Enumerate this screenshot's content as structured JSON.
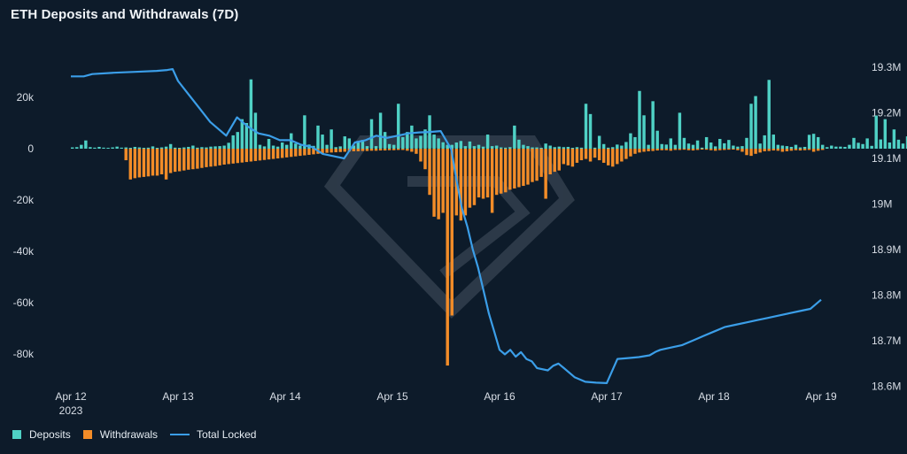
{
  "title": "ETH Deposits and Withdrawals (7D)",
  "colors": {
    "background": "#0d1b2a",
    "deposits": "#4fd1c5",
    "withdrawals": "#f28c28",
    "total_locked": "#3b9ee8",
    "axis_text": "#d8dee6"
  },
  "chart_data": {
    "type": "bar",
    "title": "ETH Deposits and Withdrawals (7D)",
    "xlabel": "",
    "ylabel": "",
    "x_ticks": [
      "Apr 12",
      "Apr 13",
      "Apr 14",
      "Apr 15",
      "Apr 16",
      "Apr 17",
      "Apr 18",
      "Apr 19"
    ],
    "x_tick_sublabel": "2023",
    "x_range_days": [
      -0.12,
      7.0
    ],
    "ylim_left": [
      -90000,
      30000
    ],
    "y_ticks_left": [
      "20k",
      "0",
      "-20k",
      "-40k",
      "-60k",
      "-80k"
    ],
    "y_tick_values_left": [
      20000,
      0,
      -20000,
      -40000,
      -60000,
      -80000
    ],
    "ylim_right": [
      18.55,
      19.35
    ],
    "y_ticks_right": [
      "19.3M",
      "19.2M",
      "19.1M",
      "19M",
      "18.9M",
      "18.8M",
      "18.7M",
      "18.6M"
    ],
    "y_tick_values_right": [
      19.3,
      19.2,
      19.1,
      19.0,
      18.9,
      18.8,
      18.7,
      18.6
    ],
    "bars_per_day": 24,
    "series": [
      {
        "name": "Deposits",
        "type": "bar",
        "axis": "left",
        "start_day": 0,
        "values": [
          500,
          600,
          1500,
          3200,
          600,
          400,
          700,
          400,
          300,
          500,
          800,
          400,
          500,
          300,
          700,
          500,
          300,
          400,
          900,
          300,
          500,
          800,
          1800,
          400,
          300,
          500,
          700,
          1200,
          400,
          600,
          500,
          800,
          900,
          1000,
          1200,
          2300,
          5200,
          6500,
          11500,
          10000,
          27000,
          14000,
          1500,
          900,
          3800,
          1200,
          800,
          2400,
          1500,
          6000,
          2000,
          1200,
          13000,
          1600,
          1100,
          9000,
          5500,
          1500,
          7500,
          600,
          900,
          4800,
          4000,
          1200,
          3000,
          3400,
          1000,
          11500,
          1000,
          14000,
          6500,
          1800,
          1500,
          17500,
          4500,
          6500,
          9000,
          4000,
          5000,
          7500,
          13000,
          5500,
          4000,
          2500,
          1500,
          1500,
          2400,
          3000,
          1000,
          2800,
          1000,
          1500,
          800,
          5500,
          1000,
          1200,
          500,
          400,
          600,
          9000,
          3500,
          1500,
          1000,
          500,
          500,
          300,
          2000,
          1200,
          600,
          800,
          600,
          700,
          300,
          600,
          400,
          17500,
          13500,
          400,
          5000,
          1800,
          400,
          600,
          1600,
          1200,
          2600,
          6000,
          4500,
          22500,
          13000,
          1500,
          18500,
          7000,
          1800,
          1600,
          4000,
          1500,
          14000,
          4200,
          2000,
          1500,
          3200,
          400,
          4500,
          2400,
          900,
          3800,
          2100,
          3400,
          1200,
          800,
          1000,
          4200,
          17500,
          20500,
          2000,
          5200,
          26800,
          5500,
          1500,
          1200,
          1000,
          700,
          1500,
          500,
          700,
          5400,
          5800,
          4500,
          1500,
          600,
          1200,
          800,
          800,
          700,
          1500,
          4200,
          2300,
          1800,
          4000,
          1100,
          12900,
          3600,
          11500,
          2400,
          7500,
          3500,
          2000,
          4800,
          2000,
          1200,
          2400,
          400,
          1300,
          700,
          1300,
          700,
          7800,
          1500,
          900,
          1100,
          14300,
          7000
        ]
      },
      {
        "name": "Withdrawals",
        "type": "bar",
        "axis": "left",
        "start_day": 0.5,
        "values": [
          -4500,
          -12000,
          -11500,
          -11200,
          -11000,
          -10800,
          -10500,
          -10500,
          -10000,
          -12000,
          -9500,
          -9000,
          -8800,
          -8500,
          -8200,
          -8000,
          -7800,
          -7500,
          -7200,
          -7000,
          -6800,
          -6500,
          -6200,
          -6000,
          -5800,
          -5600,
          -5400,
          -5200,
          -5000,
          -4800,
          -4600,
          -4400,
          -4200,
          -4000,
          -3800,
          -3600,
          -3400,
          -3200,
          -3000,
          -2800,
          -2600,
          -2400,
          -2200,
          -2000,
          -1800,
          -1600,
          -1500,
          -1400,
          -1300,
          -1200,
          -1100,
          -1000,
          -1000,
          -900,
          -900,
          -800,
          -800,
          -700,
          -700,
          -600,
          -600,
          -500,
          -500,
          -800,
          -1200,
          -2000,
          -5000,
          -8000,
          -18000,
          -26500,
          -27500,
          -25000,
          -84500,
          -65000,
          -26000,
          -28000,
          -26000,
          -23000,
          -22000,
          -19000,
          -19500,
          -19000,
          -25000,
          -18000,
          -17500,
          -17000,
          -16000,
          -15500,
          -15000,
          -14500,
          -14000,
          -13000,
          -12500,
          -11000,
          -19500,
          -10000,
          -9000,
          -8500,
          -6000,
          -6500,
          -7000,
          -5500,
          -4500,
          -4000,
          -5000,
          -3500,
          -4500,
          -5500,
          -6500,
          -7000,
          -6000,
          -5000,
          -4000,
          -3000,
          -2000,
          -1500,
          -1200,
          -1000,
          -900,
          -700,
          -600,
          -600,
          -800,
          -500,
          -500,
          -400,
          -600,
          -700,
          -500,
          -300,
          -400,
          -600,
          -800,
          -600,
          -500,
          -400,
          -300,
          -600,
          -1200,
          -2500,
          -2800,
          -2000,
          -1500,
          -1000,
          -900,
          -700,
          -800,
          -1200,
          -1000,
          -800,
          -600,
          -700,
          -600,
          -500,
          -1200,
          -800,
          -500
        ]
      },
      {
        "name": "Total Locked",
        "type": "line",
        "axis": "right",
        "x_days": [
          0,
          0.12,
          0.2,
          0.4,
          0.6,
          0.8,
          0.9,
          0.95,
          1.0,
          1.1,
          1.2,
          1.3,
          1.45,
          1.5,
          1.55,
          1.65,
          1.75,
          1.85,
          1.95,
          2.05,
          2.15,
          2.25,
          2.35,
          2.45,
          2.55,
          2.65,
          2.75,
          2.85,
          2.95,
          3.05,
          3.15,
          3.25,
          3.35,
          3.45,
          3.55,
          3.6,
          3.65,
          3.7,
          3.75,
          3.8,
          3.85,
          3.9,
          3.95,
          4.0,
          4.05,
          4.1,
          4.15,
          4.2,
          4.25,
          4.3,
          4.35,
          4.45,
          4.5,
          4.55,
          4.6,
          4.7,
          4.8,
          4.9,
          5.0,
          5.1,
          5.2,
          5.3,
          5.4,
          5.45,
          5.48,
          5.5,
          5.6,
          5.7,
          5.8,
          5.9,
          6.0,
          6.1,
          6.2,
          6.3,
          6.4,
          6.5,
          6.6,
          6.7,
          6.8,
          6.9,
          6.95,
          7.0
        ],
        "values": [
          19.28,
          19.28,
          19.285,
          19.288,
          19.29,
          19.292,
          19.294,
          19.296,
          19.27,
          19.24,
          19.21,
          19.18,
          19.15,
          19.17,
          19.19,
          19.17,
          19.155,
          19.15,
          19.14,
          19.14,
          19.13,
          19.125,
          19.11,
          19.105,
          19.1,
          19.135,
          19.14,
          19.15,
          19.145,
          19.15,
          19.155,
          19.157,
          19.158,
          19.16,
          19.12,
          19.05,
          18.99,
          18.95,
          18.9,
          18.86,
          18.81,
          18.76,
          18.72,
          18.68,
          18.67,
          18.68,
          18.665,
          18.675,
          18.66,
          18.655,
          18.64,
          18.635,
          18.645,
          18.65,
          18.64,
          18.62,
          18.61,
          18.608,
          18.607,
          18.66,
          18.662,
          18.664,
          18.668,
          18.675,
          18.678,
          18.68,
          18.685,
          18.69,
          18.7,
          18.71,
          18.72,
          18.73,
          18.735,
          18.74,
          18.745,
          18.75,
          18.755,
          18.76,
          18.765,
          18.77,
          18.78,
          18.79
        ]
      }
    ],
    "legend": {
      "placement": "bottom-left",
      "entries": [
        "Deposits",
        "Withdrawals",
        "Total Locked"
      ]
    },
    "grid": false
  }
}
